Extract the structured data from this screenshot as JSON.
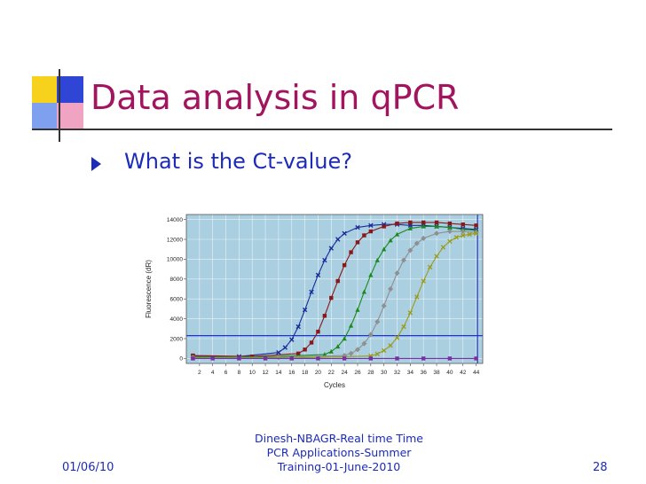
{
  "slide": {
    "title": "Data analysis in qPCR",
    "bullet": "What is the Ct-value?"
  },
  "footer": {
    "center_text": "Dinesh-NBAGR-Real time  Time PCR Applications-Summer Training-01-June-2010",
    "date": "01/06/10",
    "page_number": "28"
  },
  "colors": {
    "title": "#a3145e",
    "body_text": "#1c2bb8",
    "plot_background": "#a9cfe1",
    "threshold_line": "#2233cc"
  },
  "chart_data": {
    "type": "line",
    "xlabel": "Cycles",
    "ylabel": "Fluorescence (dR)",
    "xlim": [
      0,
      45
    ],
    "ylim": [
      -500,
      14500
    ],
    "x_ticks": [
      2,
      4,
      6,
      8,
      10,
      12,
      14,
      16,
      18,
      20,
      22,
      24,
      26,
      28,
      30,
      32,
      34,
      36,
      38,
      40,
      42,
      44
    ],
    "y_ticks": [
      0,
      2000,
      4000,
      6000,
      8000,
      10000,
      12000,
      14000
    ],
    "grid": true,
    "threshold": 2300,
    "vertical_line_x": 44.2,
    "series": [
      {
        "color": "#1a2a9c",
        "marker": "x",
        "x": [
          1,
          8,
          14,
          15,
          16,
          17,
          18,
          19,
          20,
          21,
          22,
          23,
          24,
          26,
          28,
          30,
          32,
          34,
          36,
          38,
          40,
          42,
          44
        ],
        "values": [
          200,
          200,
          600,
          1100,
          1900,
          3200,
          4900,
          6700,
          8400,
          9900,
          11100,
          12000,
          12600,
          13200,
          13400,
          13500,
          13500,
          13400,
          13400,
          13300,
          13200,
          13100,
          13000
        ]
      },
      {
        "color": "#8a1818",
        "marker": "square",
        "x": [
          1,
          10,
          17,
          18,
          19,
          20,
          21,
          22,
          23,
          24,
          25,
          26,
          27,
          28,
          30,
          32,
          34,
          36,
          38,
          40,
          42,
          44
        ],
        "values": [
          300,
          200,
          500,
          900,
          1600,
          2700,
          4300,
          6100,
          7800,
          9400,
          10700,
          11700,
          12400,
          12800,
          13300,
          13600,
          13700,
          13700,
          13700,
          13600,
          13500,
          13400
        ]
      },
      {
        "color": "#1b8a1b",
        "marker": "triangle",
        "x": [
          1,
          12,
          21,
          22,
          23,
          24,
          25,
          26,
          27,
          28,
          29,
          30,
          31,
          32,
          34,
          36,
          38,
          40,
          42,
          44
        ],
        "values": [
          150,
          150,
          400,
          700,
          1200,
          2000,
          3300,
          4900,
          6700,
          8400,
          9900,
          11000,
          11900,
          12500,
          13100,
          13300,
          13300,
          13200,
          13000,
          12900
        ]
      },
      {
        "color": "#8f8f8f",
        "marker": "diamond",
        "x": [
          1,
          14,
          24,
          25,
          26,
          27,
          28,
          29,
          30,
          31,
          32,
          33,
          34,
          35,
          36,
          38,
          40,
          42,
          44
        ],
        "values": [
          100,
          100,
          300,
          500,
          900,
          1500,
          2400,
          3700,
          5300,
          7000,
          8600,
          9900,
          10900,
          11600,
          12100,
          12600,
          12800,
          12800,
          12700
        ]
      },
      {
        "color": "#9c9c1a",
        "marker": "x",
        "x": [
          1,
          16,
          28,
          29,
          30,
          31,
          32,
          33,
          34,
          35,
          36,
          37,
          38,
          39,
          40,
          41,
          42,
          43,
          44
        ],
        "values": [
          50,
          50,
          250,
          450,
          800,
          1300,
          2100,
          3200,
          4600,
          6200,
          7800,
          9200,
          10300,
          11200,
          11800,
          12200,
          12400,
          12500,
          12600
        ]
      },
      {
        "color": "#7a2fa5",
        "marker": "square",
        "x": [
          1,
          4,
          8,
          12,
          16,
          20,
          24,
          28,
          32,
          36,
          40,
          44
        ],
        "values": [
          0,
          0,
          0,
          0,
          0,
          0,
          0,
          0,
          0,
          0,
          0,
          0
        ]
      }
    ]
  }
}
